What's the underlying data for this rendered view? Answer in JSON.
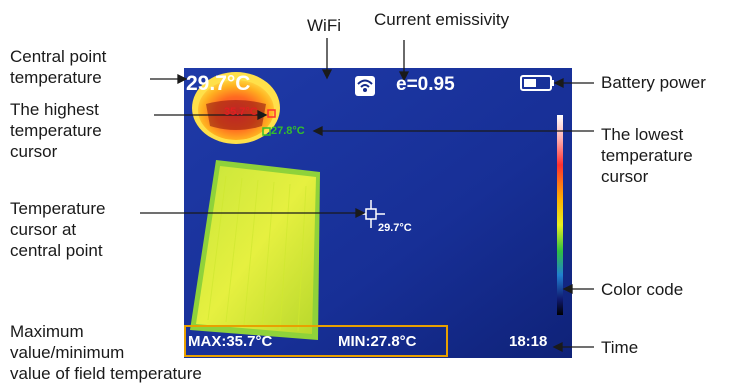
{
  "screen": {
    "center_temp": "29.7°C",
    "emissivity": "e=0.95",
    "max_cursor_temp": "35.7°C",
    "min_cursor_temp": "27.8°C",
    "center_cursor_temp": "29.7°C",
    "max_field": "MAX:35.7°C",
    "min_field": "MIN:27.8°C",
    "time": "18:18",
    "wifi_icon": "wifi-icon",
    "battery_icon": "battery-icon",
    "colors": {
      "screen_bg": "#142a8a",
      "text_white": "#ffffff",
      "max_red": "#e02020",
      "min_green": "#34c02a",
      "frame_orange": "#e8a000"
    }
  },
  "callouts": {
    "wifi": "WiFi",
    "emissivity": "Current emissivity",
    "central_point": [
      "Central point",
      "temperature"
    ],
    "highest": [
      "The highest",
      "temperature",
      "cursor"
    ],
    "lowest": [
      "The lowest",
      "temperature",
      "cursor"
    ],
    "cursor_central": [
      "Temperature",
      "cursor at",
      "central point"
    ],
    "battery": "Battery power",
    "color_code": "Color code",
    "time": "Time",
    "field": [
      "Maximum",
      "value/minimum",
      "value of field temperature"
    ]
  }
}
